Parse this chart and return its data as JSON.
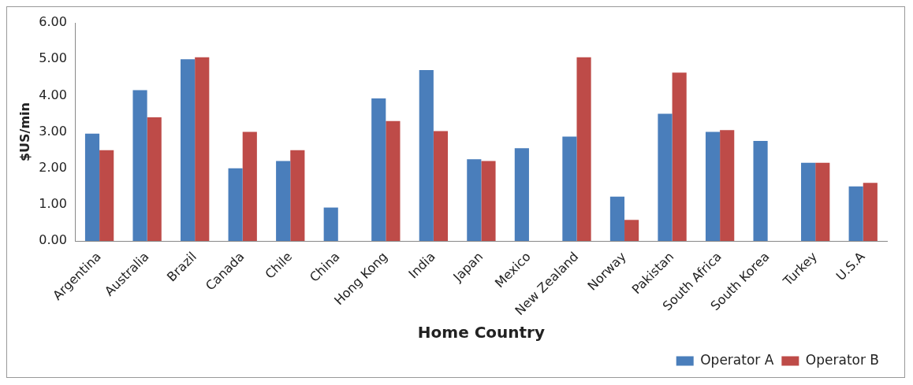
{
  "chart_data": {
    "type": "bar",
    "xlabel": "Home Country",
    "ylabel": "$US/min",
    "categories": [
      "Argentina",
      "Australia",
      "Brazil",
      "Canada",
      "Chile",
      "China",
      "Hong Kong",
      "India",
      "Japan",
      "Mexico",
      "New Zealand",
      "Norway",
      "Pakistan",
      "South Africa",
      "South Korea",
      "Turkey",
      "U.S.A"
    ],
    "series": [
      {
        "name": "Operator A",
        "color": "#4a7ebb",
        "values": [
          2.95,
          4.15,
          5.0,
          2.0,
          2.2,
          0.92,
          3.92,
          4.7,
          2.25,
          2.55,
          2.87,
          1.22,
          3.5,
          3.0,
          2.75,
          2.15,
          1.5
        ]
      },
      {
        "name": "Operator B",
        "color": "#be4b48",
        "values": [
          2.5,
          3.4,
          5.05,
          3.0,
          2.5,
          null,
          3.3,
          3.02,
          2.2,
          null,
          5.05,
          0.58,
          4.63,
          3.05,
          null,
          2.15,
          1.6
        ]
      }
    ],
    "ylim": [
      0,
      6
    ],
    "yticks": [
      {
        "value": 0,
        "label": "0.00"
      },
      {
        "value": 1,
        "label": "1.00"
      },
      {
        "value": 2,
        "label": "2.00"
      },
      {
        "value": 3,
        "label": "3.00"
      },
      {
        "value": 4,
        "label": "4.00"
      },
      {
        "value": 5,
        "label": "5.00"
      },
      {
        "value": 6,
        "label": "6.00"
      }
    ],
    "grid": false,
    "legend": "bottom right"
  }
}
